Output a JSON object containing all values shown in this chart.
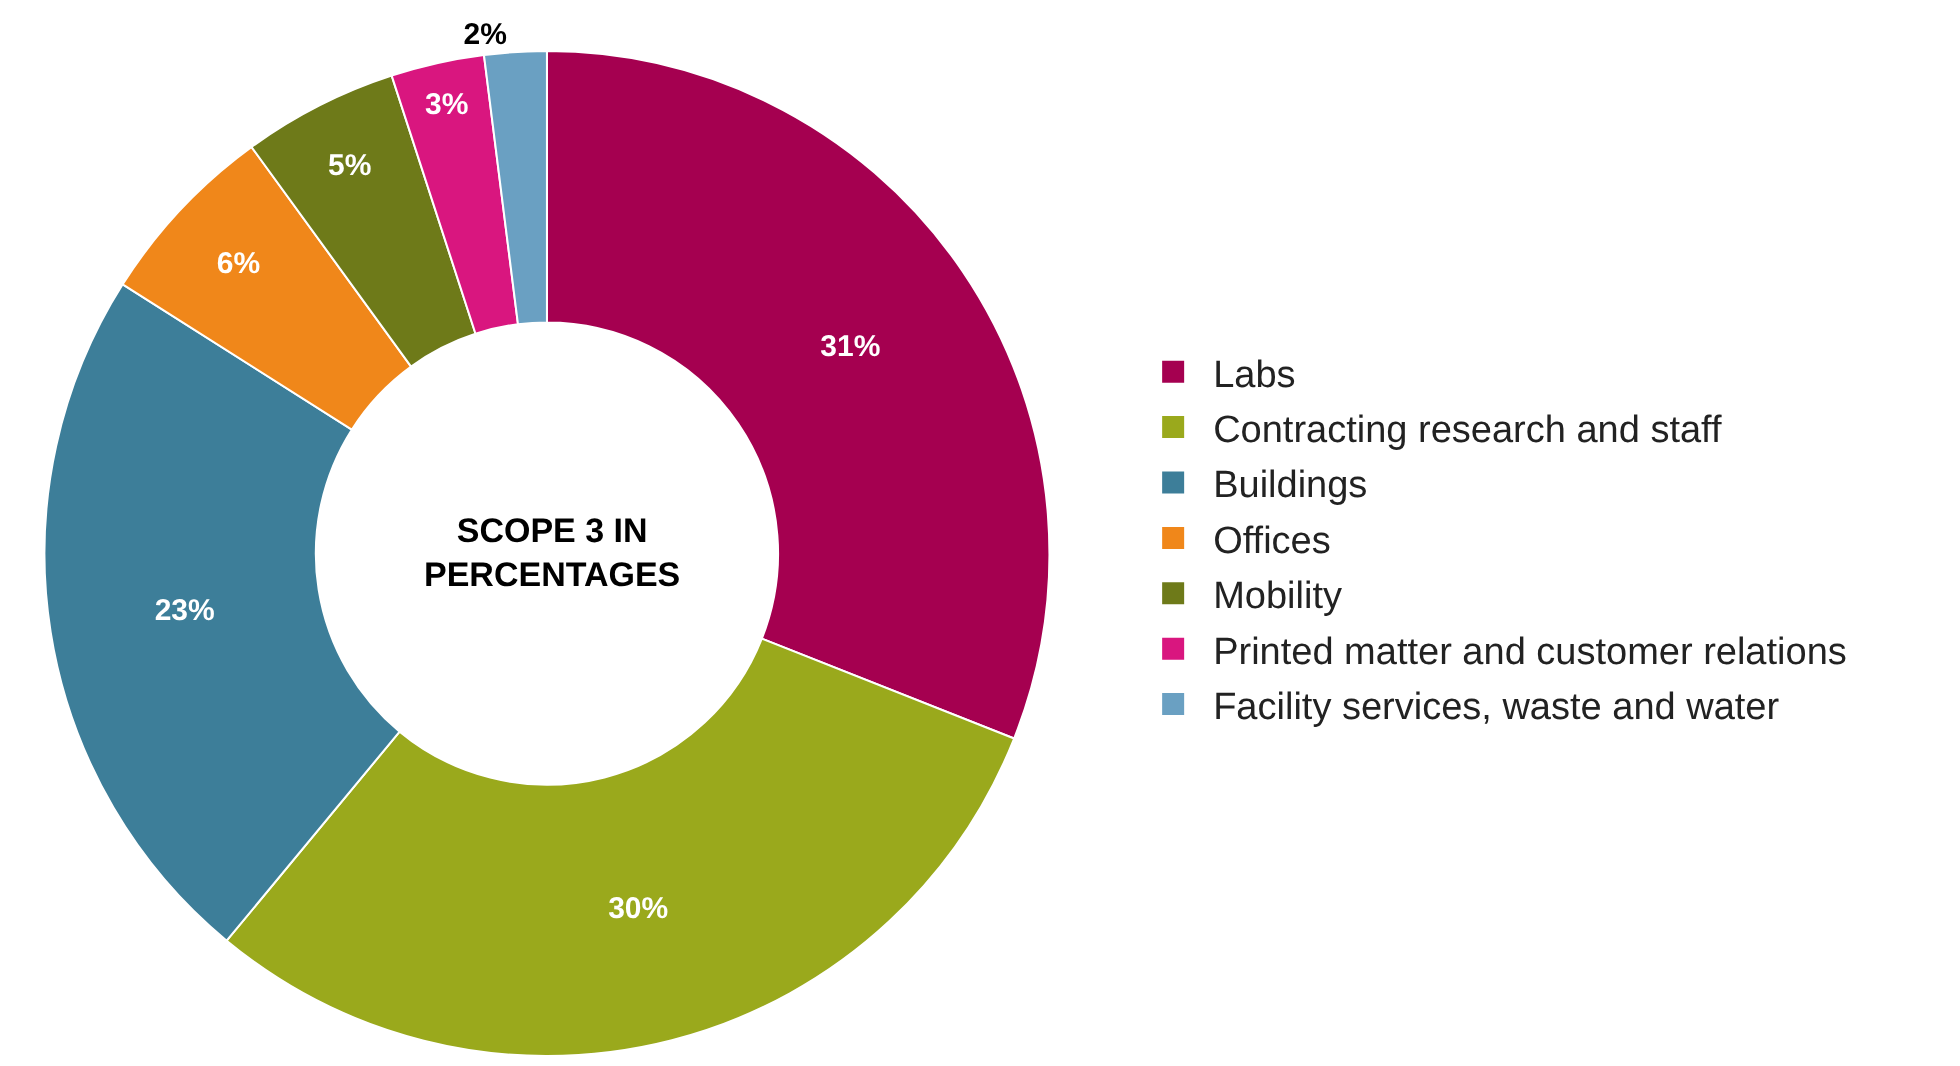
{
  "chart_data": {
    "type": "donut",
    "title": "SCOPE 3 IN PERCENTAGES",
    "categories": [
      "Labs",
      "Contracting research and staff",
      "Buildings",
      "Offices",
      "Mobility",
      "Printed matter and customer relations",
      "Facility services, waste and water"
    ],
    "values": [
      31,
      30,
      23,
      6,
      5,
      3,
      2
    ],
    "value_labels": [
      "31%",
      "30%",
      "23%",
      "6%",
      "5%",
      "3%",
      "2%"
    ],
    "colors": [
      "#a50050",
      "#9aa91c",
      "#3d7e99",
      "#f0871a",
      "#6e7a19",
      "#d9167f",
      "#6aa0c2"
    ],
    "legend": "right"
  }
}
